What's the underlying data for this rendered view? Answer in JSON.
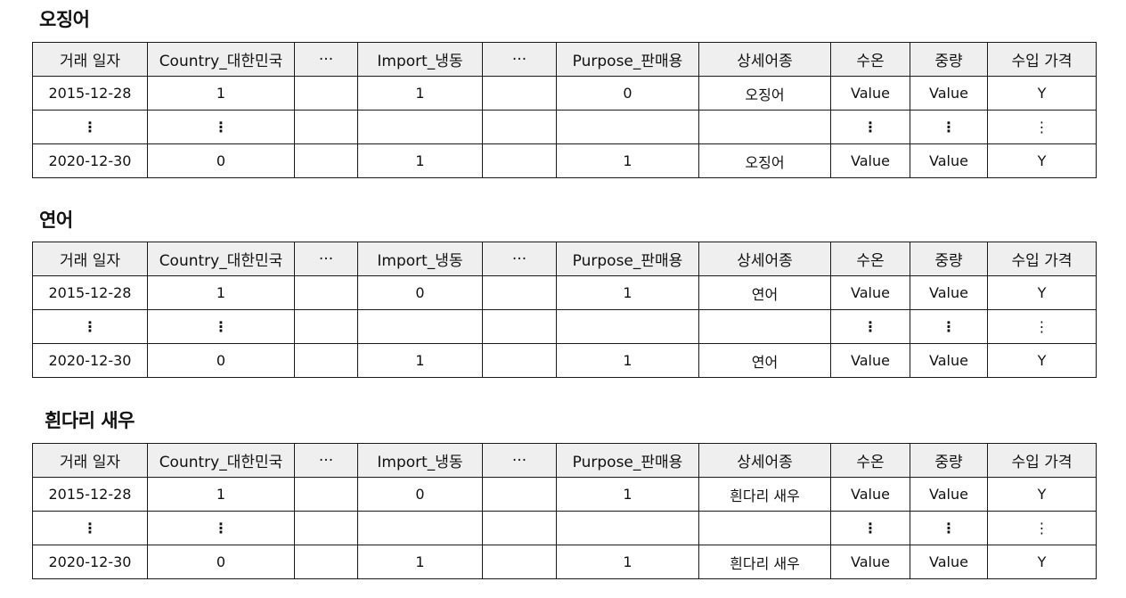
{
  "columns": [
    "거래 일자",
    "Country_대한민국",
    "···",
    "Import_냉동",
    "···",
    "Purpose_판매용",
    "상세어종",
    "수온",
    "중량",
    "수입 가격"
  ],
  "sections": [
    {
      "title": "오징어",
      "rows": [
        [
          "2015-12-28",
          "1",
          "",
          "1",
          "",
          "0",
          "오징어",
          "Value",
          "Value",
          "Y"
        ],
        [
          "⋮",
          "⋮",
          "",
          "",
          "",
          "",
          "",
          "⋮",
          "⋮",
          "⋮"
        ],
        [
          "2020-12-30",
          "0",
          "",
          "1",
          "",
          "1",
          "오징어",
          "Value",
          "Value",
          "Y"
        ]
      ]
    },
    {
      "title": "연어",
      "rows": [
        [
          "2015-12-28",
          "1",
          "",
          "0",
          "",
          "1",
          "연어",
          "Value",
          "Value",
          "Y"
        ],
        [
          "⋮",
          "⋮",
          "",
          "",
          "",
          "",
          "",
          "⋮",
          "⋮",
          "⋮"
        ],
        [
          "2020-12-30",
          "0",
          "",
          "1",
          "",
          "1",
          "연어",
          "Value",
          "Value",
          "Y"
        ]
      ]
    },
    {
      "title": "흰다리 새우",
      "rows": [
        [
          "2015-12-28",
          "1",
          "",
          "0",
          "",
          "1",
          "흰다리 새우",
          "Value",
          "Value",
          "Y"
        ],
        [
          "⋮",
          "⋮",
          "",
          "",
          "",
          "",
          "",
          "⋮",
          "⋮",
          "⋮"
        ],
        [
          "2020-12-30",
          "0",
          "",
          "1",
          "",
          "1",
          "흰다리 새우",
          "Value",
          "Value",
          "Y"
        ]
      ]
    }
  ]
}
